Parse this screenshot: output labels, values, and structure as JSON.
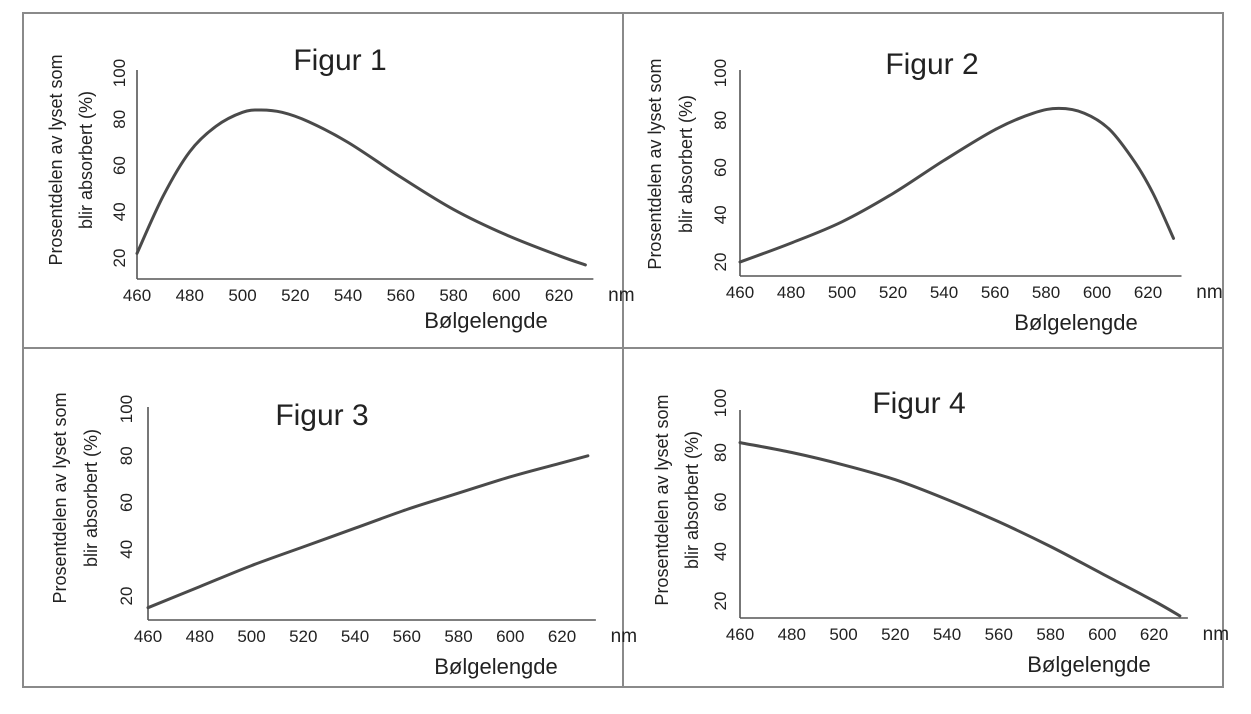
{
  "chart_data": [
    {
      "type": "line",
      "title": "Figur 1",
      "xlabel": "Bølgelengde",
      "xunit": "nm",
      "ylabel_line1": "Prosentdelen av lyset som",
      "ylabel_line2": "blir absorbert (%)",
      "x_ticks": [
        "460",
        "480",
        "500",
        "520",
        "540",
        "560",
        "580",
        "600",
        "620"
      ],
      "y_ticks": [
        "20",
        "40",
        "60",
        "80",
        "100"
      ],
      "xlim": [
        460,
        630
      ],
      "ylim": [
        15,
        100
      ],
      "grid": false,
      "x": [
        460,
        470,
        480,
        490,
        500,
        507,
        515,
        525,
        540,
        560,
        580,
        600,
        620,
        630
      ],
      "y": [
        22,
        47,
        66,
        77,
        83,
        84,
        83,
        79,
        70,
        55,
        41,
        30,
        21,
        17
      ]
    },
    {
      "type": "line",
      "title": "Figur 2",
      "xlabel": "Bølgelengde",
      "xunit": "nm",
      "ylabel_line1": "Prosentdelen av lyset som",
      "ylabel_line2": "blir absorbert (%)",
      "x_ticks": [
        "460",
        "480",
        "500",
        "520",
        "540",
        "560",
        "580",
        "600",
        "620"
      ],
      "y_ticks": [
        "20",
        "40",
        "60",
        "80",
        "100"
      ],
      "xlim": [
        460,
        630
      ],
      "ylim": [
        15,
        100
      ],
      "grid": false,
      "x": [
        460,
        480,
        500,
        520,
        540,
        560,
        575,
        585,
        595,
        605,
        615,
        622,
        630
      ],
      "y": [
        20,
        28,
        37,
        49,
        63,
        76,
        83,
        85,
        83,
        76,
        62,
        49,
        30
      ]
    },
    {
      "type": "line",
      "title": "Figur 3",
      "xlabel": "Bølgelengde",
      "xunit": "nm",
      "ylabel_line1": "Prosentdelen av lyset som",
      "ylabel_line2": "blir absorbert (%)",
      "x_ticks": [
        "460",
        "480",
        "500",
        "520",
        "540",
        "560",
        "580",
        "600",
        "620"
      ],
      "y_ticks": [
        "20",
        "40",
        "60",
        "80",
        "100"
      ],
      "xlim": [
        460,
        630
      ],
      "ylim": [
        15,
        100
      ],
      "grid": false,
      "x": [
        460,
        480,
        500,
        520,
        540,
        560,
        580,
        600,
        620,
        630
      ],
      "y": [
        15,
        24,
        33,
        41,
        49,
        57,
        64,
        71,
        77,
        80
      ]
    },
    {
      "type": "line",
      "title": "Figur 4",
      "xlabel": "Bølgelengde",
      "xunit": "nm",
      "ylabel_line1": "Prosentdelen av lyset som",
      "ylabel_line2": "blir absorbert (%)",
      "x_ticks": [
        "460",
        "480",
        "500",
        "520",
        "540",
        "560",
        "580",
        "600",
        "620"
      ],
      "y_ticks": [
        "20",
        "40",
        "60",
        "80",
        "100"
      ],
      "xlim": [
        460,
        630
      ],
      "ylim": [
        15,
        100
      ],
      "grid": false,
      "x": [
        460,
        480,
        500,
        520,
        540,
        560,
        580,
        600,
        620,
        630
      ],
      "y": [
        84,
        80,
        75,
        69,
        61,
        52,
        42,
        31,
        20,
        14
      ]
    }
  ]
}
